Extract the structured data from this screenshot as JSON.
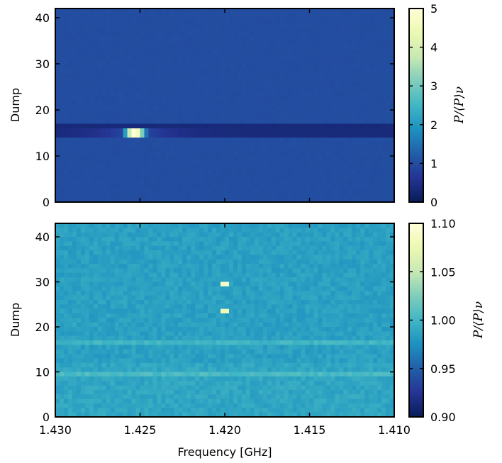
{
  "chart_data": [
    {
      "type": "heatmap",
      "panel": "top",
      "ylabel": "Dump",
      "xlim": [
        1.43,
        1.41
      ],
      "ylim": [
        0,
        42
      ],
      "xticks": [
        1.43,
        1.425,
        1.42,
        1.415,
        1.41
      ],
      "yticks": [
        0,
        10,
        20,
        30,
        40
      ],
      "ytick_labels": [
        "0",
        "10",
        "20",
        "30",
        "40"
      ],
      "colormap": "YlGnBu",
      "colorbar": {
        "label": "P/⟨P⟩ν",
        "range": [
          0,
          5
        ],
        "ticks": [
          0,
          1,
          2,
          3,
          4,
          5
        ],
        "tick_labels": [
          "0",
          "1",
          "2",
          "3",
          "4",
          "5"
        ]
      },
      "background_value": 1.0,
      "features": [
        {
          "kind": "horizontal-band",
          "dump_range": [
            14,
            16.5
          ],
          "value": 0.35
        },
        {
          "kind": "hot-spot",
          "frequency": 1.4253,
          "dump": 15,
          "value": 5.0
        }
      ]
    },
    {
      "type": "heatmap",
      "panel": "bottom",
      "xlabel": "Frequency [GHz]",
      "ylabel": "Dump",
      "xlim": [
        1.43,
        1.41
      ],
      "ylim": [
        0,
        43
      ],
      "xticks": [
        1.43,
        1.425,
        1.42,
        1.415,
        1.41
      ],
      "xtick_labels": [
        "1.430",
        "1.425",
        "1.420",
        "1.415",
        "1.410"
      ],
      "yticks": [
        0,
        10,
        20,
        30,
        40
      ],
      "ytick_labels": [
        "0",
        "10",
        "20",
        "30",
        "40"
      ],
      "colormap": "YlGnBu",
      "colorbar": {
        "label": "P/⟨P⟩ν",
        "range": [
          0.9,
          1.1
        ],
        "ticks": [
          0.9,
          0.95,
          1.0,
          1.05,
          1.1
        ],
        "tick_labels": [
          "0.90",
          "0.95",
          "1.00",
          "1.05",
          "1.10"
        ]
      },
      "background_value": 0.985,
      "features": [
        {
          "kind": "hot-spot",
          "frequency": 1.42,
          "dump": 29.5,
          "value": 1.09
        },
        {
          "kind": "hot-spot",
          "frequency": 1.42,
          "dump": 23.5,
          "value": 1.08
        },
        {
          "kind": "faint-line",
          "dump": 16.5,
          "value": 1.0
        },
        {
          "kind": "faint-line",
          "dump": 9.5,
          "value": 1.0
        }
      ]
    }
  ]
}
